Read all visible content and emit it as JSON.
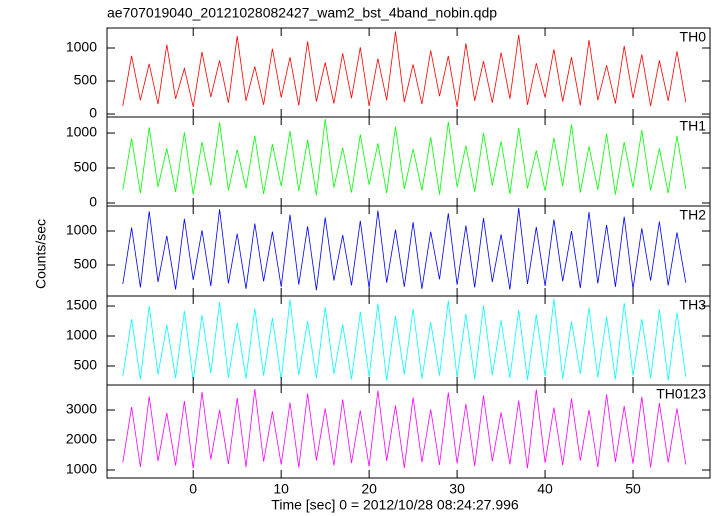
{
  "chart_data": [
    {
      "type": "line",
      "title": "ae707019040_20121028082427_wam2_bst_4band_nobin.qdp",
      "label": "TH0",
      "color": "#ff0000",
      "x": [
        -8,
        -7,
        -6,
        -5,
        -4,
        -3,
        -2,
        -1,
        0,
        1,
        2,
        3,
        4,
        5,
        6,
        7,
        8,
        9,
        10,
        11,
        12,
        13,
        14,
        15,
        16,
        17,
        18,
        19,
        20,
        21,
        22,
        23,
        24,
        25,
        26,
        27,
        28,
        29,
        30,
        31,
        32,
        33,
        34,
        35,
        36,
        37,
        38,
        39,
        40,
        41,
        42,
        43,
        44,
        45,
        46,
        47,
        48,
        49,
        50,
        51,
        52,
        53,
        54,
        55,
        56
      ],
      "values": [
        120,
        880,
        210,
        760,
        150,
        1050,
        230,
        690,
        110,
        940,
        260,
        810,
        170,
        1180,
        200,
        720,
        140,
        990,
        250,
        860,
        130,
        1100,
        190,
        780,
        160,
        920,
        240,
        1010,
        120,
        840,
        210,
        1250,
        180,
        750,
        150,
        960,
        270,
        880,
        110,
        1070,
        200,
        800,
        170,
        930,
        230,
        1200,
        140,
        770,
        250,
        980,
        190,
        860,
        130,
        1120,
        210,
        740,
        160,
        1030,
        240,
        900,
        120,
        810,
        200,
        950,
        180
      ],
      "xlim": [
        -9.8,
        58.75
      ],
      "ylim": [
        -45,
        1303
      ],
      "yticks": [
        0,
        500,
        1000
      ]
    },
    {
      "type": "line",
      "label": "TH1",
      "color": "#00ff00",
      "values": [
        190,
        920,
        140,
        1080,
        230,
        780,
        160,
        1010,
        120,
        870,
        250,
        1150,
        180,
        760,
        210,
        960,
        130,
        840,
        240,
        1030,
        170,
        900,
        110,
        1200,
        220,
        790,
        150,
        980,
        260,
        850,
        140,
        1090,
        200,
        770,
        180,
        940,
        120,
        1160,
        230,
        820,
        160,
        1000,
        250,
        880,
        130,
        1070,
        210,
        750,
        170,
        930,
        240,
        1120,
        150,
        810,
        190,
        990,
        120,
        870,
        220,
        1040,
        180,
        780,
        140,
        960,
        200
      ],
      "xlim": [
        -9.8,
        58.75
      ],
      "ylim": [
        -43,
        1229
      ],
      "yticks": [
        0,
        500,
        1000
      ]
    },
    {
      "type": "line",
      "label": "TH2",
      "color": "#0000ff",
      "y_label": "Counts/sec",
      "values": [
        220,
        1050,
        170,
        1290,
        250,
        930,
        140,
        1180,
        280,
        1010,
        190,
        1320,
        230,
        960,
        150,
        1110,
        260,
        990,
        180,
        1240,
        210,
        1070,
        130,
        1200,
        270,
        940,
        200,
        1150,
        160,
        1300,
        240,
        1020,
        180,
        1130,
        150,
        990,
        290,
        1260,
        210,
        1080,
        170,
        1190,
        250,
        950,
        140,
        1340,
        220,
        1060,
        190,
        1170,
        260,
        1000,
        160,
        1280,
        230,
        1090,
        180,
        1210,
        150,
        1040,
        270,
        1140,
        200,
        980,
        240
      ],
      "xlim": [
        -9.8,
        58.75
      ],
      "ylim": [
        44,
        1368
      ],
      "yticks": [
        500,
        1000
      ]
    },
    {
      "type": "line",
      "label": "TH3",
      "color": "#00ffff",
      "values": [
        330,
        1280,
        280,
        1500,
        360,
        1180,
        300,
        1420,
        260,
        1350,
        380,
        1560,
        310,
        1220,
        290,
        1460,
        340,
        1300,
        270,
        1610,
        350,
        1250,
        300,
        1480,
        370,
        1190,
        280,
        1400,
        320,
        1540,
        260,
        1330,
        360,
        1450,
        290,
        1230,
        340,
        1590,
        310,
        1370,
        280,
        1510,
        350,
        1260,
        300,
        1430,
        270,
        1360,
        330,
        1620,
        290,
        1240,
        370,
        1470,
        310,
        1320,
        280,
        1550,
        340,
        1280,
        300,
        1440,
        260,
        1390,
        320
      ],
      "xlim": [
        -9.8,
        58.75
      ],
      "ylim": [
        183,
        1667
      ],
      "yticks": [
        500,
        1000,
        1500
      ]
    },
    {
      "type": "line",
      "label": "TH0123",
      "color": "#ff00ff",
      "x_label": "Time [sec] 0 = 2012/10/28 08:24:27.996",
      "values": [
        1250,
        3100,
        1100,
        3450,
        1300,
        2900,
        1150,
        3300,
        1050,
        3600,
        1350,
        3000,
        1200,
        3400,
        1100,
        3700,
        1280,
        2950,
        1180,
        3250,
        1080,
        3550,
        1320,
        3050,
        1150,
        3350,
        1230,
        2980,
        1120,
        3650,
        1300,
        3150,
        1070,
        3420,
        1260,
        3020,
        1170,
        3580,
        1220,
        3200,
        1130,
        3480,
        1290,
        2920,
        1190,
        3320,
        1060,
        3680,
        1240,
        3080,
        1160,
        3380,
        1310,
        3000,
        1100,
        3520,
        1270,
        3130,
        1210,
        3440,
        1090,
        3230,
        1250,
        3050,
        1180
      ],
      "xlim": [
        -9.8,
        58.75
      ],
      "ylim": [
        733,
        3833
      ],
      "yticks": [
        1000,
        2000,
        3000
      ],
      "xticks": [
        0,
        10,
        20,
        30,
        40,
        50
      ]
    }
  ]
}
